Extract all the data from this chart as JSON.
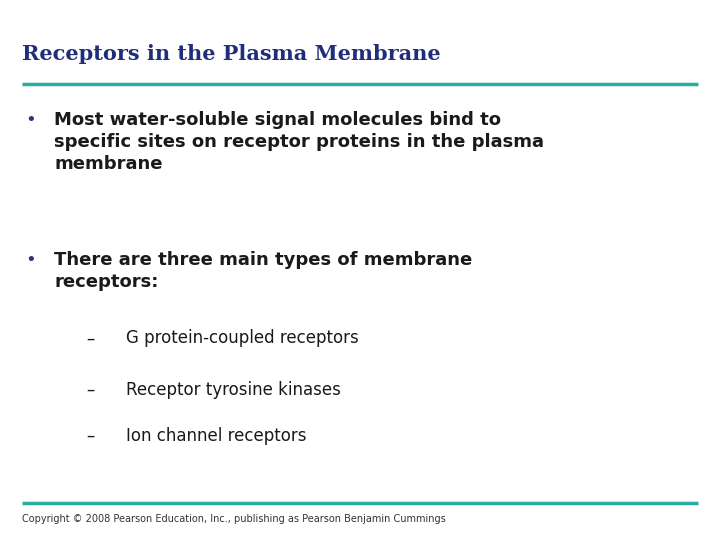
{
  "title": "Receptors in the Plasma Membrane",
  "title_color": "#1F2D7B",
  "title_fontsize": 15,
  "title_font": "serif",
  "line_color": "#2AACA0",
  "bg_color": "#FFFFFF",
  "bullet_color": "#2A3580",
  "bullet1_line1": "Most water-soluble signal molecules bind to",
  "bullet1_line2": "specific sites on receptor proteins in the plasma",
  "bullet1_line3": "membrane",
  "bullet2_line1": "There are three main types of membrane",
  "bullet2_line2": "receptors:",
  "sub1": "G protein-coupled receptors",
  "sub2": "Receptor tyrosine kinases",
  "sub3": "Ion channel receptors",
  "copyright": "Copyright © 2008 Pearson Education, Inc., publishing as Pearson Benjamin Cummings",
  "copyright_fontsize": 7,
  "body_fontsize": 13,
  "sub_fontsize": 12
}
